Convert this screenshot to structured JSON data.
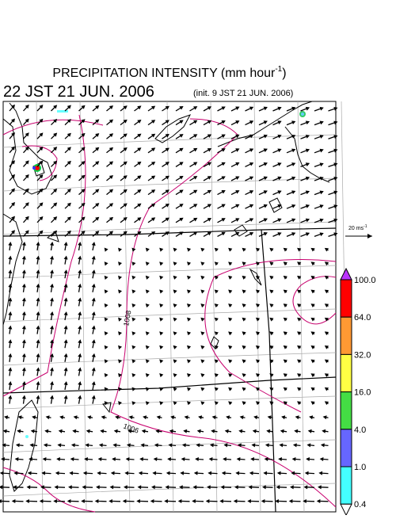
{
  "header": {
    "title": "PRECIPITATION INTENSITY (mm hour",
    "title_superscript": "-1",
    "title_close": ")",
    "valid_time": "22 JST 21 JUN. 2006",
    "init_time": "(init. 9 JST 21 JUN. 2006)"
  },
  "wind_scale": {
    "label": "20 ms",
    "superscript": "-1"
  },
  "contour_labels": [
    "1008",
    "1006"
  ],
  "colorbar": {
    "labels": [
      "100.0",
      "64.0",
      "32.0",
      "16.0",
      "4.0",
      "1.0",
      "0.4"
    ]
  }
}
